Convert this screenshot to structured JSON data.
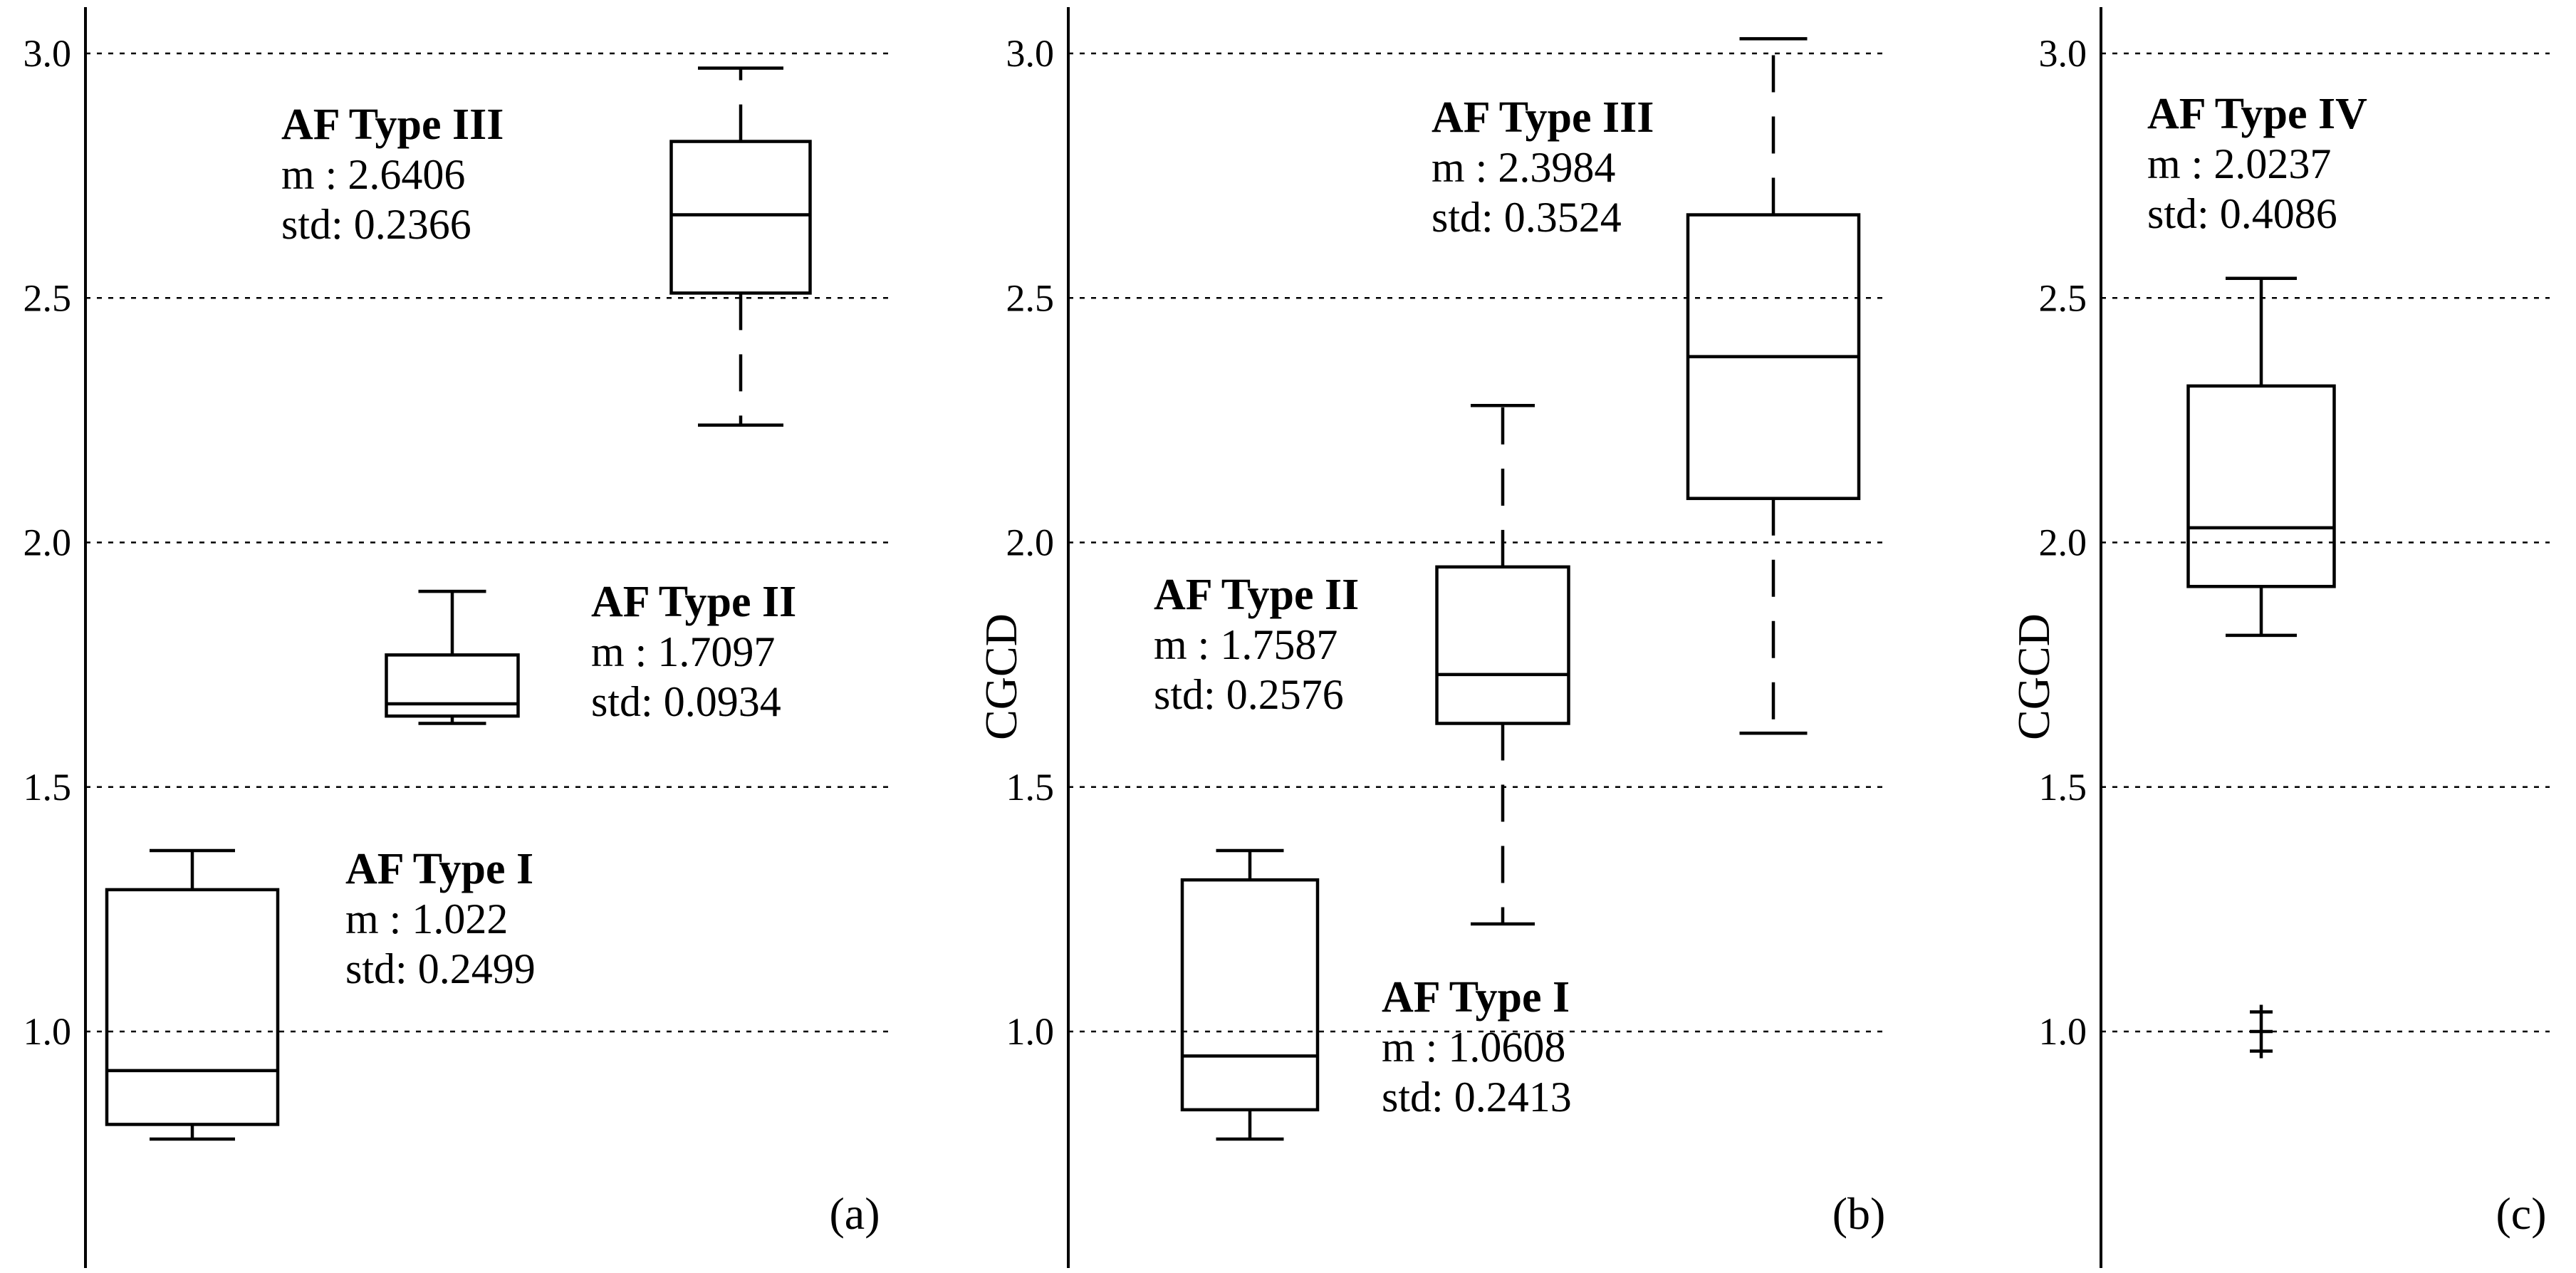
{
  "chart_data": [
    {
      "type": "box",
      "panel_label": "(a)",
      "ylabel": "",
      "ylim": [
        0.6,
        3.1
      ],
      "yticks": [
        "1.0",
        "1.5",
        "2.0",
        "2.5",
        "3.0"
      ],
      "grid": true,
      "boxes": [
        {
          "name": "AF Type I",
          "min": 0.78,
          "q1": 0.81,
          "median": 0.92,
          "q3": 1.29,
          "max": 1.37,
          "whisker_style": "solid",
          "annotation": {
            "title": "AF Type I",
            "mean": "m : 1.022",
            "std": "std: 0.2499"
          }
        },
        {
          "name": "AF Type II",
          "min": 1.63,
          "q1": 1.645,
          "median": 1.67,
          "q3": 1.77,
          "max": 1.9,
          "whisker_style": "solid",
          "annotation": {
            "title": "AF Type II",
            "mean": "m : 1.7097",
            "std": "std: 0.0934"
          }
        },
        {
          "name": "AF Type III",
          "min": 2.24,
          "q1": 2.51,
          "median": 2.67,
          "q3": 2.82,
          "max": 2.97,
          "whisker_style": "dashed",
          "annotation": {
            "title": "AF Type III",
            "mean": "m : 2.6406",
            "std": "std: 0.2366"
          }
        }
      ]
    },
    {
      "type": "box",
      "panel_label": "(b)",
      "ylabel": "CGCD",
      "ylim": [
        0.6,
        3.1
      ],
      "yticks": [
        "1.0",
        "1.5",
        "2.0",
        "2.5",
        "3.0"
      ],
      "grid": true,
      "boxes": [
        {
          "name": "AF Type I",
          "min": 0.78,
          "q1": 0.84,
          "median": 0.95,
          "q3": 1.31,
          "max": 1.37,
          "whisker_style": "solid",
          "annotation": {
            "title": "AF Type I",
            "mean": "m : 1.0608",
            "std": "std: 0.2413"
          }
        },
        {
          "name": "AF Type II",
          "min": 1.22,
          "q1": 1.63,
          "median": 1.73,
          "q3": 1.95,
          "max": 2.28,
          "whisker_style": "dashed",
          "annotation": {
            "title": "AF Type II",
            "mean": "m : 1.7587",
            "std": "std: 0.2576"
          }
        },
        {
          "name": "AF Type III",
          "min": 1.61,
          "q1": 2.09,
          "median": 2.38,
          "q3": 2.67,
          "max": 3.03,
          "whisker_style": "dashed",
          "annotation": {
            "title": "AF Type III",
            "mean": "m : 2.3984",
            "std": "std: 0.3524"
          }
        }
      ]
    },
    {
      "type": "box",
      "panel_label": "(c)",
      "ylabel": "CGCD",
      "ylim": [
        0.6,
        3.1
      ],
      "yticks": [
        "1.0",
        "1.5",
        "2.0",
        "2.5",
        "3.0"
      ],
      "grid": true,
      "boxes": [
        {
          "name": "AF Type IV",
          "min": 1.81,
          "q1": 1.91,
          "median": 2.03,
          "q3": 2.32,
          "max": 2.54,
          "whisker_style": "solid",
          "outliers": [
            0.96,
            1.0,
            1.04
          ],
          "annotation": {
            "title": "AF Type IV",
            "mean": "m : 2.0237",
            "std": "std: 0.4086"
          }
        }
      ]
    }
  ]
}
